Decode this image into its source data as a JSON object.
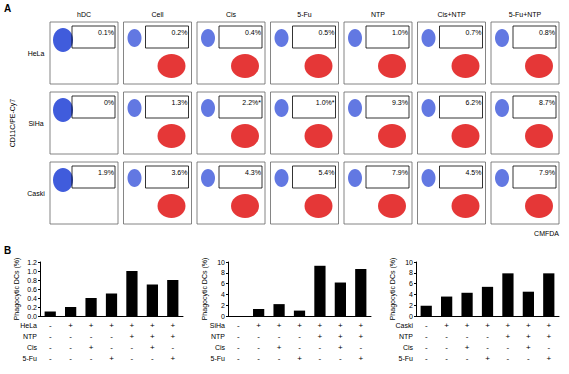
{
  "panel_labels": [
    "A",
    "B"
  ],
  "flow": {
    "y_label": "CD11C/PE-Cy7",
    "x_label": "CMFDA",
    "columns": [
      "hDC",
      "Cell",
      "Cis",
      "5-Fu",
      "NTP",
      "Cis+NTP",
      "5-Fu+NTP"
    ],
    "rows": [
      {
        "name": "HeLa",
        "gates": [
          "0.1%",
          "0.2%",
          "0.4%",
          "0.5%",
          "1.0%",
          "0.7%",
          "0.8%"
        ]
      },
      {
        "name": "SiHa",
        "gates": [
          "0%",
          "1.3%",
          "2.2%*",
          "1.0%*",
          "9.3%",
          "6.2%",
          "8.7%"
        ]
      },
      {
        "name": "Caski",
        "gates": [
          "1.9%",
          "3.6%",
          "4.3%",
          "5.4%",
          "7.9%",
          "4.5%",
          "7.9%"
        ]
      }
    ]
  },
  "chart_data": [
    {
      "type": "bar",
      "y_label": "Phagocytic DCs (%)",
      "categories": [
        null,
        null,
        null,
        null,
        null,
        null,
        null
      ],
      "values": [
        0.1,
        0.2,
        0.4,
        0.5,
        1.0,
        0.7,
        0.8
      ],
      "color": "#000000",
      "ylim": [
        0,
        1.2
      ],
      "yticks": [
        {
          "value": 0,
          "label": "0.0"
        },
        0.2,
        0.4,
        0.6,
        0.8,
        {
          "value": 1,
          "label": "1.0"
        },
        1.2
      ],
      "tick_labels": "y",
      "treatment_table": {
        "rows": [
          {
            "label": "HeLa",
            "marks": [
              "-",
              "+",
              "+",
              "+",
              "+",
              "+",
              "+"
            ]
          },
          {
            "label": "NTP",
            "marks": [
              "-",
              "-",
              "-",
              "-",
              "+",
              "+",
              "+"
            ]
          },
          {
            "label": "Cis",
            "marks": [
              "-",
              "-",
              "+",
              "-",
              "-",
              "+",
              "-"
            ]
          },
          {
            "label": "5-Fu",
            "marks": [
              "-",
              "-",
              "-",
              "+",
              "-",
              "-",
              "+"
            ]
          }
        ]
      }
    },
    {
      "type": "bar",
      "y_label": "Phagocytic DCs (%)",
      "categories": [
        null,
        null,
        null,
        null,
        null,
        null,
        null
      ],
      "values": [
        0,
        1.3,
        2.2,
        1.0,
        9.3,
        6.2,
        8.7
      ],
      "color": "#000000",
      "ylim": [
        0,
        10
      ],
      "yticks": [
        0,
        2,
        4,
        6,
        8,
        10
      ],
      "tick_labels": "y",
      "treatment_table": {
        "rows": [
          {
            "label": "SiHa",
            "marks": [
              "-",
              "+",
              "+",
              "+",
              "+",
              "+",
              "+"
            ]
          },
          {
            "label": "NTP",
            "marks": [
              "-",
              "-",
              "-",
              "-",
              "+",
              "+",
              "+"
            ]
          },
          {
            "label": "Cis",
            "marks": [
              "-",
              "-",
              "+",
              "-",
              "-",
              "+",
              "-"
            ]
          },
          {
            "label": "5-Fu",
            "marks": [
              "-",
              "-",
              "-",
              "+",
              "-",
              "-",
              "+"
            ]
          }
        ]
      }
    },
    {
      "type": "bar",
      "y_label": "Phagocytic DCs (%)",
      "categories": [
        null,
        null,
        null,
        null,
        null,
        null,
        null
      ],
      "values": [
        1.9,
        3.6,
        4.3,
        5.4,
        7.9,
        4.5,
        7.9
      ],
      "color": "#000000",
      "ylim": [
        0,
        10
      ],
      "yticks": [
        0,
        2,
        4,
        6,
        8,
        10
      ],
      "tick_labels": "y",
      "treatment_table": {
        "rows": [
          {
            "label": "Caski",
            "marks": [
              "-",
              "+",
              "+",
              "+",
              "+",
              "+",
              "+"
            ]
          },
          {
            "label": "NTP",
            "marks": [
              "-",
              "-",
              "-",
              "-",
              "+",
              "+",
              "+"
            ]
          },
          {
            "label": "Cis",
            "marks": [
              "-",
              "-",
              "+",
              "-",
              "-",
              "+",
              "-"
            ]
          },
          {
            "label": "5-Fu",
            "marks": [
              "-",
              "-",
              "-",
              "+",
              "-",
              "-",
              "+"
            ]
          }
        ]
      }
    }
  ]
}
